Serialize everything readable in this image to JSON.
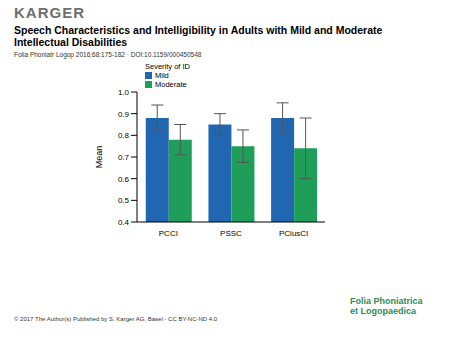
{
  "header": {
    "publisher": "KARGER",
    "title": "Speech Characteristics and Intelligibility in Adults with Mild and Moderate Intellectual Disabilities",
    "citation": "Folia Phoniatr Logop 2016;68:175-182 · DOI:10.1159/000450548"
  },
  "footer": {
    "copyright": "© 2017 The Author(s) Published by S. Karger AG, Basel - CC BY-NC-ND 4.0",
    "journal_logo": [
      "Folia Phoniatrica",
      "et Logopaedica"
    ]
  },
  "chart_data": {
    "type": "bar",
    "y_label": "Mean",
    "legend_title": "Severity of ID",
    "legend": "upper left",
    "categories": [
      "PCCI",
      "PSSC",
      "PClusCI"
    ],
    "series": [
      {
        "name": "Mild",
        "color": "#2166b0",
        "values": [
          0.88,
          0.85,
          0.88
        ],
        "errors": [
          0.06,
          0.05,
          0.07
        ]
      },
      {
        "name": "Moderate",
        "color": "#1f9e5a",
        "values": [
          0.78,
          0.75,
          0.74
        ],
        "errors": [
          0.07,
          0.075,
          0.14
        ]
      }
    ],
    "ylim": [
      0.4,
      1.0
    ],
    "yticks": [
      0.4,
      0.5,
      0.6,
      0.7,
      0.8,
      0.9,
      {
        "value": 1,
        "label": "1.0"
      }
    ]
  }
}
